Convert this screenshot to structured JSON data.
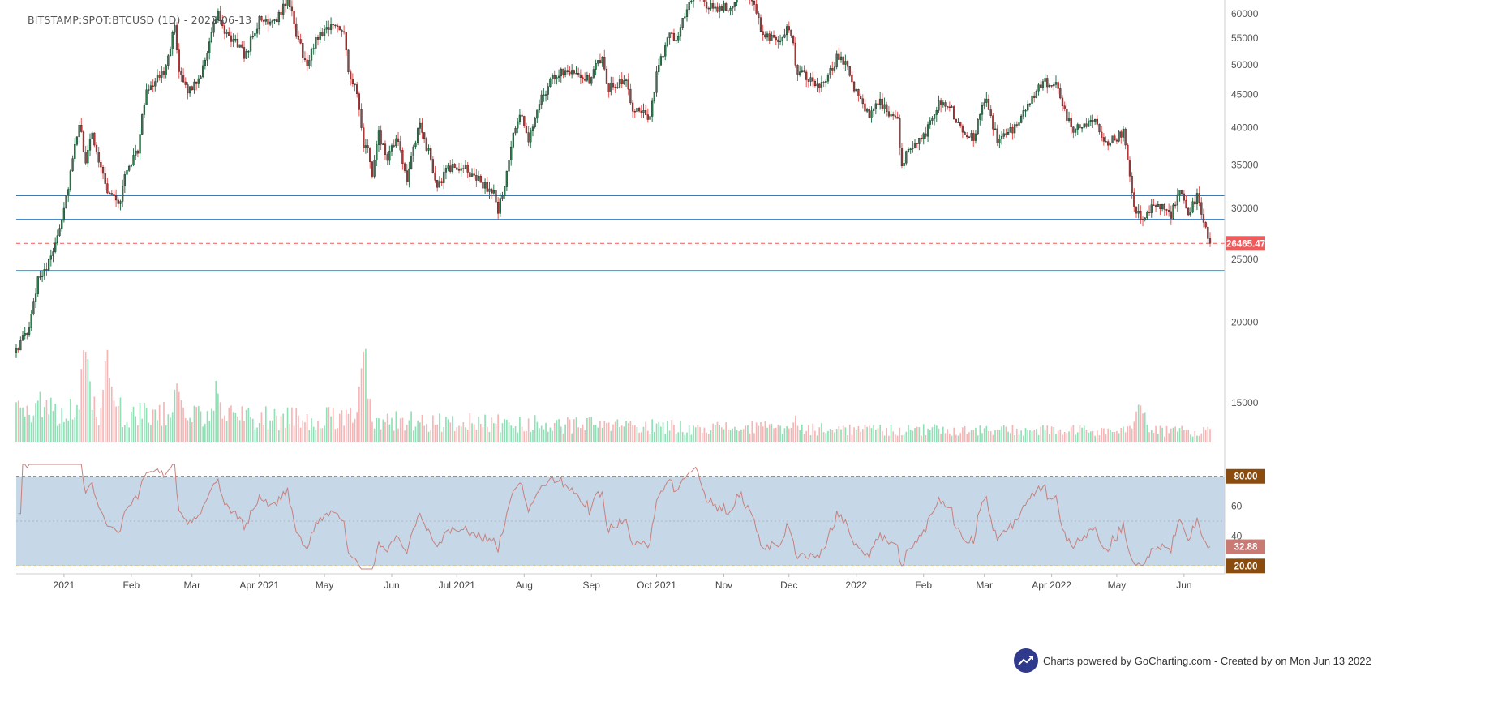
{
  "title": "BITSTAMP:SPOT:BTCUSD (1D) - 2022-06-13",
  "watermark": "Charts powered by GoCharting.com - Created by  on Mon Jun 13 2022",
  "colors": {
    "up": "#26734d",
    "down": "#e65050",
    "candle_up_fill": "#2e7d4f",
    "candle_down_fill": "#b03a3a",
    "vol_up": "#8fe0b5",
    "vol_down": "#f6b5b5",
    "hline": "#2d7cc4",
    "last_price": "#f05a5a",
    "rsi_band": "#c6d7e7",
    "rsi_line": "#c8807d",
    "rsi_level_badge": "#8a4b0f",
    "rsi_value_badge": "#c97a75"
  },
  "chart_data": [
    {
      "type": "candlestick",
      "name": "price",
      "title": "BITSTAMP:SPOT:BTCUSD (1D) - 2022-06-13",
      "scale": "log",
      "ylim": [
        12500,
        63000
      ],
      "y_ticks": [
        15000,
        20000,
        25000,
        30000,
        35000,
        40000,
        45000,
        50000,
        55000,
        60000
      ],
      "x_ticks": [
        "2021",
        "Feb",
        "Mar",
        "Apr 2021",
        "May",
        "Jun",
        "Jul 2021",
        "Aug",
        "Sep",
        "Oct 2021",
        "Nov",
        "Dec",
        "2022",
        "Feb",
        "Mar",
        "Apr 2022",
        "May",
        "Jun"
      ],
      "x_tick_dates": [
        "2021-01-01",
        "2021-02-01",
        "2021-03-01",
        "2021-04-01",
        "2021-05-01",
        "2021-06-01",
        "2021-07-01",
        "2021-08-01",
        "2021-09-01",
        "2021-10-01",
        "2021-11-01",
        "2021-12-01",
        "2022-01-01",
        "2022-02-01",
        "2022-03-01",
        "2022-04-01",
        "2022-05-01",
        "2022-06-01"
      ],
      "date_range": [
        "2020-12-10",
        "2022-06-13"
      ],
      "horizontal_lines": [
        31400,
        28800,
        24000
      ],
      "last_price": 26465.47,
      "last_price_label": "26465.47",
      "close_path": [
        [
          "2020-12-10",
          18200
        ],
        [
          "2020-12-16",
          19400
        ],
        [
          "2020-12-20",
          23500
        ],
        [
          "2020-12-25",
          24600
        ],
        [
          "2020-12-31",
          29000
        ],
        [
          "2021-01-03",
          32500
        ],
        [
          "2021-01-08",
          40500
        ],
        [
          "2021-01-11",
          35500
        ],
        [
          "2021-01-14",
          39000
        ],
        [
          "2021-01-21",
          32000
        ],
        [
          "2021-01-27",
          30500
        ],
        [
          "2021-01-29",
          34000
        ],
        [
          "2021-02-04",
          37000
        ],
        [
          "2021-02-08",
          46000
        ],
        [
          "2021-02-13",
          47500
        ],
        [
          "2021-02-16",
          49000
        ],
        [
          "2021-02-21",
          57000
        ],
        [
          "2021-02-23",
          48000
        ],
        [
          "2021-02-28",
          45500
        ],
        [
          "2021-03-05",
          48500
        ],
        [
          "2021-03-13",
          60500
        ],
        [
          "2021-03-16",
          55500
        ],
        [
          "2021-03-22",
          54000
        ],
        [
          "2021-03-25",
          51500
        ],
        [
          "2021-04-01",
          58500
        ],
        [
          "2021-04-05",
          58500
        ],
        [
          "2021-04-10",
          59500
        ],
        [
          "2021-04-14",
          63500
        ],
        [
          "2021-04-18",
          56000
        ],
        [
          "2021-04-23",
          49500
        ],
        [
          "2021-04-27",
          55000
        ],
        [
          "2021-05-03",
          57500
        ],
        [
          "2021-05-10",
          57000
        ],
        [
          "2021-05-12",
          49000
        ],
        [
          "2021-05-16",
          45000
        ],
        [
          "2021-05-19",
          37000
        ],
        [
          "2021-05-21",
          37500
        ],
        [
          "2021-05-23",
          33500
        ],
        [
          "2021-05-26",
          39000
        ],
        [
          "2021-05-30",
          35500
        ],
        [
          "2021-06-03",
          38500
        ],
        [
          "2021-06-08",
          33500
        ],
        [
          "2021-06-14",
          40500
        ],
        [
          "2021-06-18",
          36500
        ],
        [
          "2021-06-22",
          32500
        ],
        [
          "2021-06-27",
          34500
        ],
        [
          "2021-07-03",
          34800
        ],
        [
          "2021-07-07",
          34000
        ],
        [
          "2021-07-12",
          33000
        ],
        [
          "2021-07-18",
          31500
        ],
        [
          "2021-07-20",
          29800
        ],
        [
          "2021-07-24",
          33800
        ],
        [
          "2021-07-26",
          37500
        ],
        [
          "2021-07-30",
          42000
        ],
        [
          "2021-08-03",
          38000
        ],
        [
          "2021-08-08",
          44000
        ],
        [
          "2021-08-14",
          47500
        ],
        [
          "2021-08-20",
          49300
        ],
        [
          "2021-08-25",
          48900
        ],
        [
          "2021-08-31",
          47100
        ],
        [
          "2021-09-06",
          51800
        ],
        [
          "2021-09-08",
          46000
        ],
        [
          "2021-09-14",
          47000
        ],
        [
          "2021-09-16",
          48000
        ],
        [
          "2021-09-20",
          43000
        ],
        [
          "2021-09-24",
          42800
        ],
        [
          "2021-09-28",
          41000
        ],
        [
          "2021-10-01",
          48100
        ],
        [
          "2021-10-06",
          55300
        ],
        [
          "2021-10-10",
          54700
        ],
        [
          "2021-10-15",
          61500
        ],
        [
          "2021-10-20",
          65500
        ],
        [
          "2021-10-24",
          61300
        ],
        [
          "2021-10-28",
          61000
        ],
        [
          "2021-11-04",
          61400
        ],
        [
          "2021-11-09",
          66900
        ],
        [
          "2021-11-10",
          64900
        ],
        [
          "2021-11-16",
          60300
        ],
        [
          "2021-11-18",
          56900
        ],
        [
          "2021-11-26",
          53700
        ],
        [
          "2021-11-30",
          57000
        ],
        [
          "2021-12-03",
          53600
        ],
        [
          "2021-12-04",
          49300
        ],
        [
          "2021-12-13",
          46600
        ],
        [
          "2021-12-17",
          46200
        ],
        [
          "2021-12-23",
          51200
        ],
        [
          "2021-12-27",
          50700
        ],
        [
          "2021-12-30",
          47000
        ],
        [
          "2022-01-07",
          41500
        ],
        [
          "2022-01-12",
          43900
        ],
        [
          "2022-01-20",
          40600
        ],
        [
          "2022-01-22",
          35000
        ],
        [
          "2022-01-24",
          36600
        ],
        [
          "2022-01-28",
          37700
        ],
        [
          "2022-02-01",
          38700
        ],
        [
          "2022-02-08",
          44000
        ],
        [
          "2022-02-10",
          43500
        ],
        [
          "2022-02-14",
          42500
        ],
        [
          "2022-02-18",
          40000
        ],
        [
          "2022-02-24",
          38300
        ],
        [
          "2022-02-28",
          43100
        ],
        [
          "2022-03-02",
          44400
        ],
        [
          "2022-03-07",
          38000
        ],
        [
          "2022-03-14",
          39600
        ],
        [
          "2022-03-18",
          41700
        ],
        [
          "2022-03-28",
          47000
        ],
        [
          "2022-04-03",
          46400
        ],
        [
          "2022-04-06",
          43200
        ],
        [
          "2022-04-11",
          39500
        ],
        [
          "2022-04-20",
          41300
        ],
        [
          "2022-04-26",
          38100
        ],
        [
          "2022-05-01",
          38400
        ],
        [
          "2022-05-04",
          39700
        ],
        [
          "2022-05-06",
          36000
        ],
        [
          "2022-05-09",
          30300
        ],
        [
          "2022-05-12",
          28900
        ],
        [
          "2022-05-16",
          29800
        ],
        [
          "2022-05-22",
          30300
        ],
        [
          "2022-05-26",
          29200
        ],
        [
          "2022-05-30",
          31800
        ],
        [
          "2022-06-03",
          29700
        ],
        [
          "2022-06-07",
          31100
        ],
        [
          "2022-06-10",
          28400
        ],
        [
          "2022-06-13",
          26465
        ]
      ]
    },
    {
      "type": "bar",
      "name": "volume",
      "pattern": "volume_spikes",
      "spikes": [
        [
          "2021-01-11",
          1.0
        ],
        [
          "2021-01-21",
          0.8
        ],
        [
          "2021-02-22",
          0.62
        ],
        [
          "2021-05-19",
          0.95
        ],
        [
          "2022-05-12",
          0.45
        ],
        [
          "2021-03-12",
          0.5
        ],
        [
          "2021-12-04",
          0.25
        ]
      ]
    },
    {
      "type": "line",
      "name": "RSI",
      "ylim": [
        18,
        88
      ],
      "levels": [
        80,
        20
      ],
      "level_labels": [
        "80.00",
        "20.00"
      ],
      "mid_level": 50,
      "y_ticks": [
        40,
        60
      ],
      "last_value": 32.88,
      "last_value_label": "32.88"
    }
  ]
}
